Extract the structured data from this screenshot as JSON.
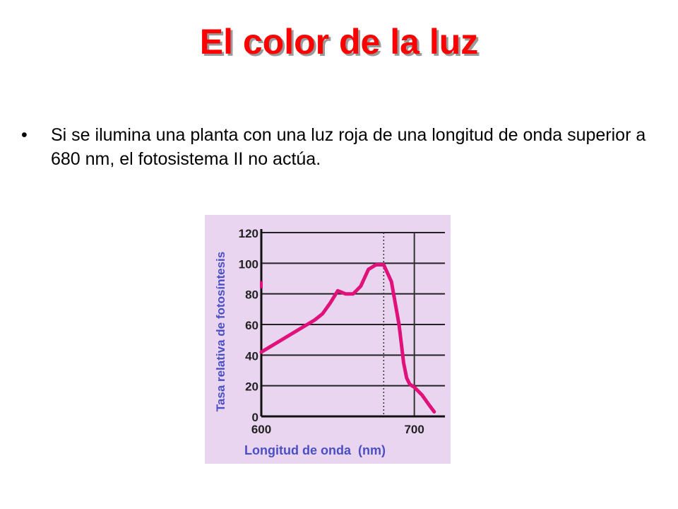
{
  "slide": {
    "title": "El color de la luz",
    "bullet": "Si se ilumina una planta con una luz roja de una longitud de onda superior a 680 nm, el fotosistema II no actúa."
  },
  "colors": {
    "title": "#ff0000",
    "chart_background": "#e9d5ef",
    "axis_text": "#4a4fc4",
    "curve": "#e0117a"
  },
  "chart_data": {
    "type": "line",
    "title": "",
    "xlabel": "Longitud de onda  (nm)",
    "ylabel": "Tasa relativa de fotosíntesis",
    "xlim": [
      600,
      720
    ],
    "ylim": [
      0,
      120
    ],
    "x_ticks": [
      "600",
      "700"
    ],
    "y_ticks": [
      "0",
      "20",
      "40",
      "60",
      "80",
      "100",
      "120"
    ],
    "grid": "horizontal",
    "reference_lines": [
      {
        "x": 680,
        "style": "dotted"
      },
      {
        "x": 700,
        "style": "solid"
      }
    ],
    "series": [
      {
        "x": [
          600,
          610,
          620,
          630,
          635,
          640,
          645,
          650,
          655,
          660,
          665,
          670,
          675,
          680,
          685,
          690,
          693,
          695,
          697,
          700,
          705,
          710,
          713
        ],
        "y": [
          42,
          48,
          54,
          60,
          63,
          67,
          74,
          82,
          80,
          80,
          85,
          96,
          99,
          99,
          88,
          60,
          35,
          25,
          21,
          19,
          14,
          7,
          3
        ]
      }
    ],
    "stray_point": {
      "x": 600,
      "y": 86
    }
  }
}
